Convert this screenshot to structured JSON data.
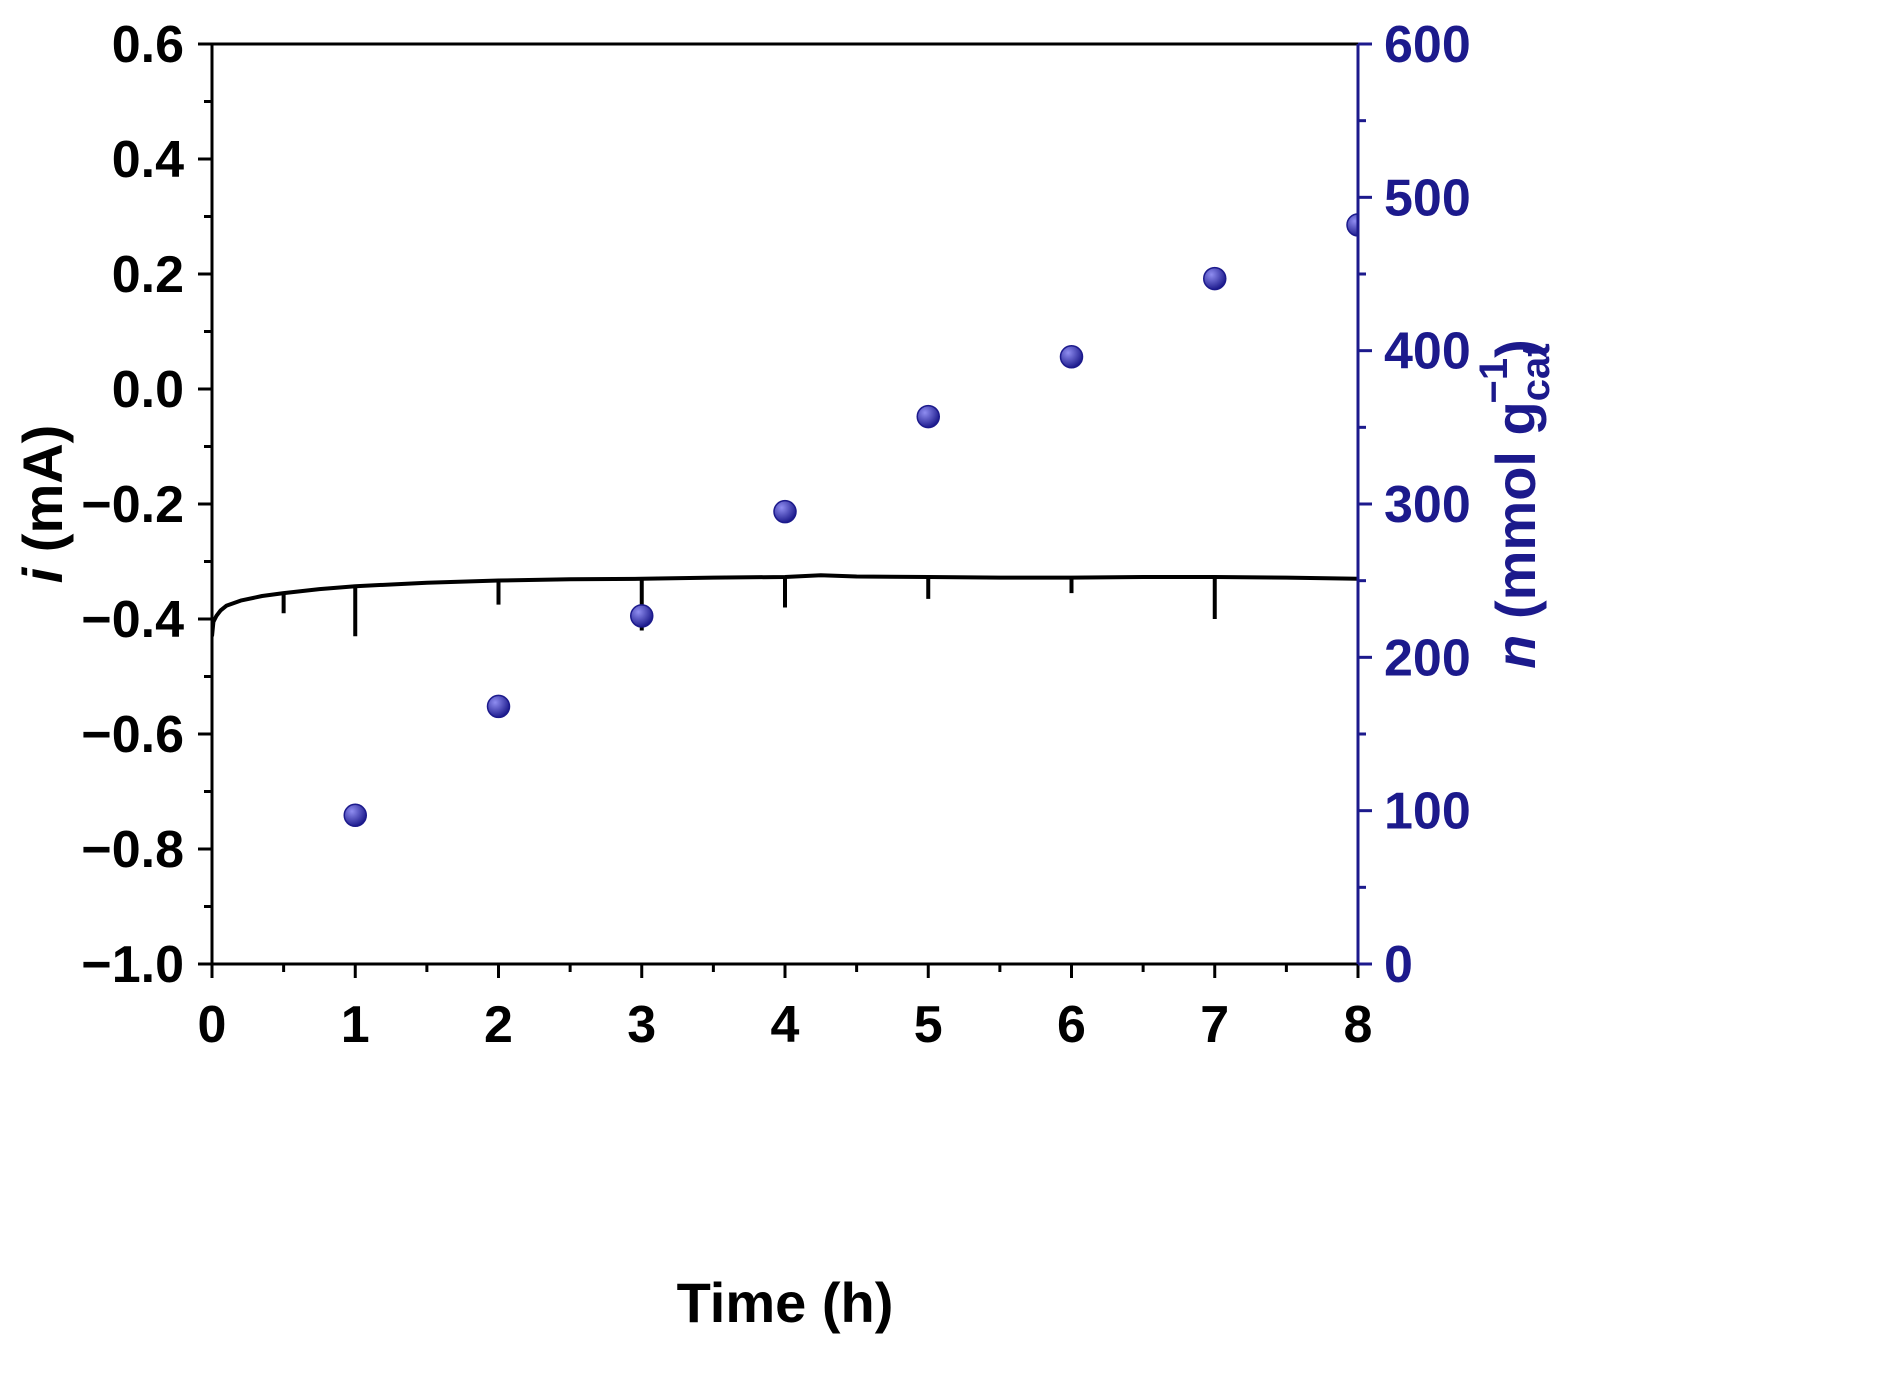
{
  "colors": {
    "axis_left": "#000000",
    "axis_right": "#1c1a8c",
    "current_line": "#000000",
    "marker": "#1c1a8c",
    "marker_highlight": "#8f8df0"
  },
  "chart_data": {
    "type": "line",
    "x_axis": {
      "label": "Time (h)",
      "range": [
        0,
        8
      ],
      "ticks": [
        "0",
        "1",
        "2",
        "3",
        "4",
        "5",
        "6",
        "7",
        "8"
      ]
    },
    "y_left_axis": {
      "label_italic": "i",
      "label_rest": " (mA)",
      "range": [
        -1.0,
        0.6
      ],
      "ticks": [
        "0.6",
        "0.4",
        "0.2",
        "0.0",
        "−0.2",
        "−0.4",
        "−0.6",
        "−0.8",
        "−1.0"
      ]
    },
    "y_right_axis": {
      "label_italic": "n",
      "label_rest": " (mmol g",
      "label_sub": "cat",
      "label_sup": "−1",
      "label_close": ")",
      "range": [
        0,
        600
      ],
      "ticks": [
        "600",
        "500",
        "400",
        "300",
        "200",
        "100",
        "0"
      ]
    },
    "series": [
      {
        "axis": "left",
        "style": "line",
        "x": [
          0,
          0.01,
          0.03,
          0.06,
          0.1,
          0.2,
          0.35,
          0.5,
          0.75,
          1.0,
          1.5,
          2.0,
          2.5,
          3.0,
          3.5,
          4.0,
          4.25,
          4.5,
          5.0,
          5.5,
          6.0,
          6.5,
          7.0,
          7.5,
          8.0
        ],
        "y": [
          -0.43,
          -0.405,
          -0.395,
          -0.385,
          -0.377,
          -0.368,
          -0.36,
          -0.355,
          -0.348,
          -0.343,
          -0.337,
          -0.333,
          -0.331,
          -0.33,
          -0.328,
          -0.327,
          -0.324,
          -0.326,
          -0.327,
          -0.328,
          -0.328,
          -0.327,
          -0.327,
          -0.328,
          -0.33
        ]
      },
      {
        "axis": "left",
        "style": "spikes",
        "x": [
          0.5,
          1.0,
          2.0,
          3.0,
          4.0,
          5.0,
          6.0,
          7.0
        ],
        "y": [
          -0.39,
          -0.43,
          -0.375,
          -0.42,
          -0.38,
          -0.365,
          -0.355,
          -0.4
        ]
      },
      {
        "axis": "right",
        "style": "scatter",
        "x": [
          1,
          2,
          3,
          4,
          5,
          6,
          7,
          8
        ],
        "y": [
          97,
          168,
          227,
          295,
          357,
          396,
          447,
          482
        ]
      }
    ]
  }
}
